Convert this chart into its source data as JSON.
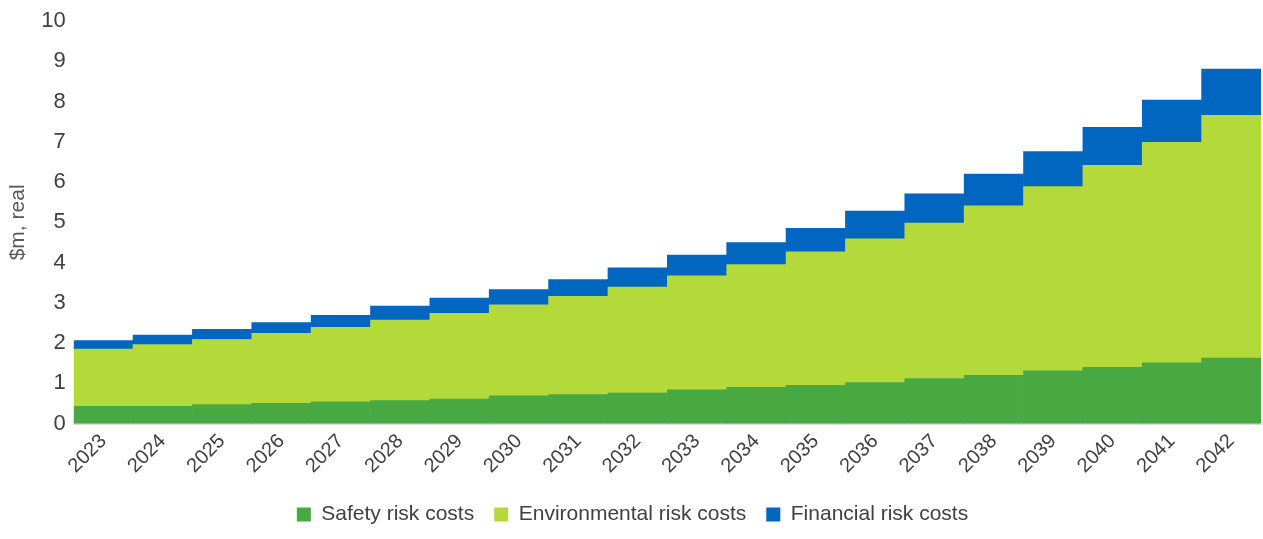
{
  "chart_data": {
    "type": "bar",
    "stacked": true,
    "ylabel": "$m, real",
    "categories": [
      "2023",
      "2024",
      "2025",
      "2026",
      "2027",
      "2028",
      "2029",
      "2030",
      "2031",
      "2032",
      "2033",
      "2034",
      "2035",
      "2036",
      "2037",
      "2038",
      "2039",
      "2040",
      "2041",
      "2042"
    ],
    "series": [
      {
        "name": "Safety risk costs",
        "color": "#48a842",
        "values": [
          0.43,
          0.43,
          0.47,
          0.5,
          0.54,
          0.57,
          0.61,
          0.69,
          0.72,
          0.76,
          0.84,
          0.9,
          0.95,
          1.02,
          1.12,
          1.2,
          1.31,
          1.4,
          1.51,
          1.63
        ]
      },
      {
        "name": "Environmental risk costs",
        "color": "#b3d93b",
        "values": [
          1.42,
          1.53,
          1.62,
          1.74,
          1.85,
          2.0,
          2.13,
          2.26,
          2.44,
          2.63,
          2.83,
          3.05,
          3.32,
          3.57,
          3.86,
          4.21,
          4.58,
          5.02,
          5.48,
          6.03
        ]
      },
      {
        "name": "Financial risk costs",
        "color": "#0066bf",
        "values": [
          0.21,
          0.24,
          0.25,
          0.27,
          0.3,
          0.35,
          0.38,
          0.38,
          0.42,
          0.48,
          0.52,
          0.55,
          0.58,
          0.69,
          0.73,
          0.79,
          0.87,
          0.94,
          1.05,
          1.15
        ]
      }
    ],
    "ylim": [
      0,
      10
    ],
    "yticks": [
      0,
      1,
      2,
      3,
      4,
      5,
      6,
      7,
      8,
      9,
      10
    ],
    "grid": false,
    "legend": "bottom"
  }
}
